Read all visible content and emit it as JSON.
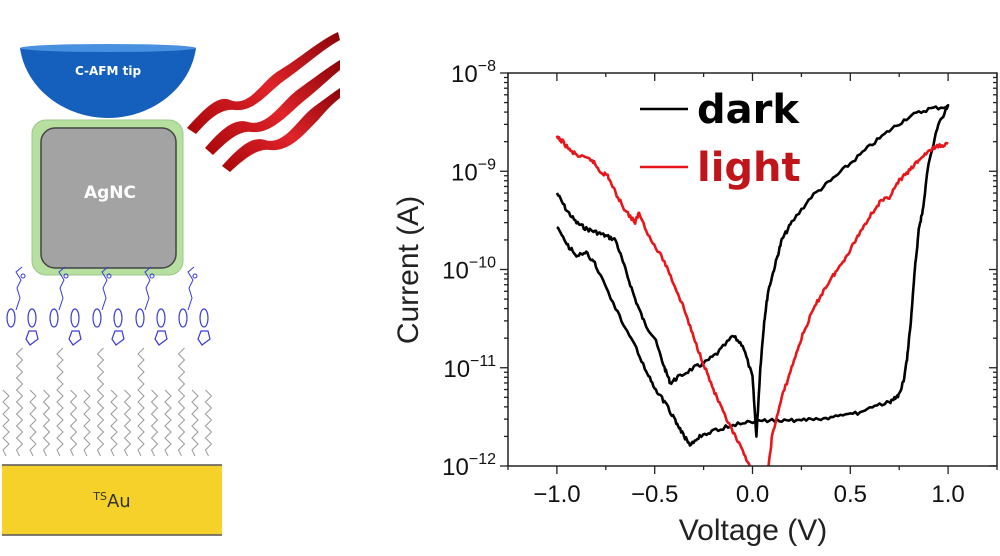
{
  "diagram": {
    "tip_label": "C-AFM tip",
    "nanocube_label": "AgNC",
    "substrate_label_sup": "TS",
    "substrate_label": "Au",
    "colors": {
      "tip": "#1560bd",
      "shell": "#b7dfa0",
      "cube": "#a0a0a0",
      "gold": "#f5d12a",
      "molecule": "#3a3ad8",
      "chain": "#9a9a9a",
      "light": "#c0161b"
    }
  },
  "chart_data": {
    "type": "line",
    "title": "",
    "xlabel": "Voltage (V)",
    "ylabel": "Current (A)",
    "xlim": [
      -1.25,
      1.25
    ],
    "ylim": [
      1e-12,
      1e-08
    ],
    "yscale": "log",
    "x_ticks": [
      -1.0,
      -0.5,
      0.0,
      0.5,
      1.0
    ],
    "x_tick_labels": [
      "−1.0",
      "−0.5",
      "0.0",
      "0.5",
      "1.0"
    ],
    "y_ticks": [
      {
        "base": "10",
        "exp": "−8",
        "value": -8
      },
      {
        "base": "10",
        "exp": "−9",
        "value": -9
      },
      {
        "base": "10",
        "exp": "−10",
        "value": -10
      },
      {
        "base": "10",
        "exp": "−11",
        "value": -11
      },
      {
        "base": "10",
        "exp": "−12",
        "value": -12
      }
    ],
    "legend_position": "top-center",
    "series": [
      {
        "name": "dark",
        "color": "#000000",
        "x": [
          -1.0,
          -0.95,
          -0.9,
          -0.85,
          -0.8,
          -0.75,
          -0.7,
          -0.65,
          -0.6,
          -0.55,
          -0.5,
          -0.45,
          -0.42,
          -0.38,
          -0.3,
          -0.25,
          -0.18,
          -0.1,
          -0.05,
          0.0,
          0.02,
          0.04,
          0.06,
          0.08,
          0.12,
          0.15,
          0.2,
          0.3,
          0.4,
          0.5,
          0.6,
          0.7,
          0.8,
          0.9,
          1.0,
          0.95,
          0.9,
          0.87,
          0.85,
          0.83,
          0.81,
          0.79,
          0.77,
          0.74,
          0.7,
          0.6,
          0.5,
          0.4,
          0.3,
          0.2,
          0.1,
          0.0,
          -0.1,
          -0.2,
          -0.27,
          -0.32,
          -0.36,
          -0.4,
          -0.45,
          -0.5,
          -0.55,
          -0.62,
          -0.7,
          -0.8,
          -0.85,
          -0.9,
          -0.95,
          -1.0
        ],
        "y": [
          6e-10,
          4e-10,
          3e-10,
          2.6e-10,
          2.4e-10,
          2.2e-10,
          2e-10,
          1e-10,
          5e-11,
          2.8e-11,
          2e-11,
          1e-11,
          7e-12,
          8e-12,
          1e-11,
          1.1e-11,
          1.4e-11,
          2.1e-11,
          1.7e-11,
          8e-12,
          2e-12,
          1e-11,
          3e-11,
          6e-11,
          1.2e-10,
          2e-10,
          3e-10,
          5.5e-10,
          8e-10,
          1.2e-09,
          1.8e-09,
          2.6e-09,
          3.6e-09,
          4.3e-09,
          4.6e-09,
          3e-09,
          1.2e-09,
          4e-10,
          2.5e-10,
          1e-10,
          3e-11,
          1.2e-11,
          7e-12,
          5e-12,
          4.5e-12,
          3.8e-12,
          3.3e-12,
          3.1e-12,
          3e-12,
          2.9e-12,
          2.9e-12,
          2.8e-12,
          2.6e-12,
          2.3e-12,
          2e-12,
          1.6e-12,
          2.2e-12,
          3e-12,
          4.5e-12,
          6e-12,
          1e-11,
          2e-11,
          4e-11,
          1.1e-10,
          1.5e-10,
          1.4e-10,
          1.8e-10,
          2.7e-10
        ]
      },
      {
        "name": "light",
        "color": "#e8161b",
        "x": [
          -1.0,
          -0.97,
          -0.93,
          -0.88,
          -0.82,
          -0.78,
          -0.74,
          -0.7,
          -0.65,
          -0.6,
          -0.58,
          -0.52,
          -0.45,
          -0.4,
          -0.35,
          -0.3,
          -0.25,
          -0.2,
          -0.15,
          -0.1,
          -0.05,
          0.0,
          0.08,
          0.1,
          0.15,
          0.2,
          0.25,
          0.3,
          0.35,
          0.4,
          0.45,
          0.5,
          0.55,
          0.6,
          0.65,
          0.7,
          0.75,
          0.8,
          0.85,
          0.9,
          0.95,
          1.0
        ],
        "y": [
          2.2e-09,
          2e-09,
          1.6e-09,
          1.4e-09,
          1.3e-09,
          1e-09,
          9e-10,
          6e-10,
          4e-10,
          3e-10,
          3.8e-10,
          2e-10,
          1.2e-10,
          7e-11,
          4e-11,
          2e-11,
          1.1e-11,
          6e-12,
          3.5e-12,
          2.2e-12,
          1.4e-12,
          9e-13,
          9e-13,
          2e-12,
          5e-12,
          1e-11,
          2e-11,
          3.5e-11,
          5.5e-11,
          8e-11,
          1.1e-10,
          1.6e-10,
          2.4e-10,
          3.5e-10,
          4.8e-10,
          5.5e-10,
          8e-10,
          1e-09,
          1.3e-09,
          1.6e-09,
          1.8e-09,
          1.9e-09
        ]
      }
    ]
  }
}
